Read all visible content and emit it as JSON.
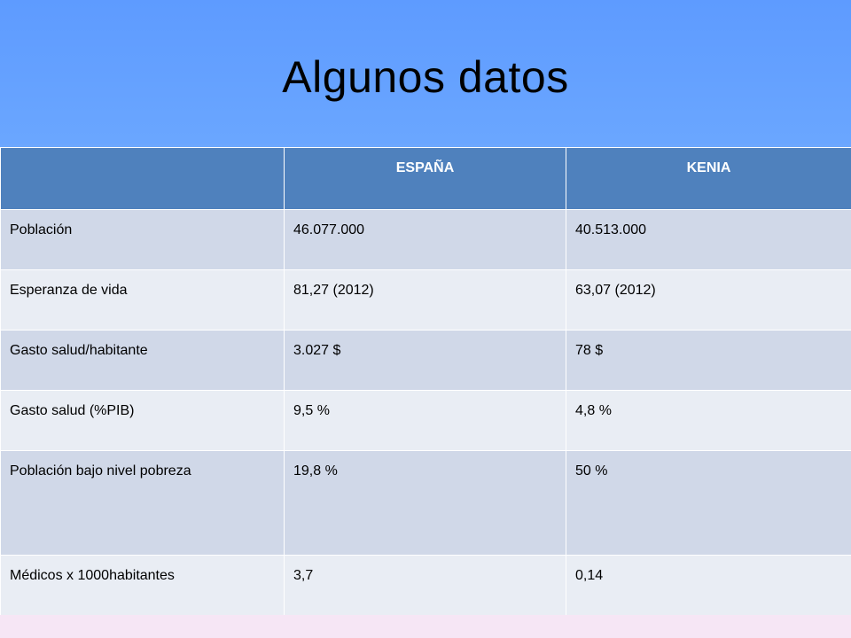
{
  "slide": {
    "title": "Algunos datos"
  },
  "table": {
    "headers": [
      "",
      "ESPAÑA",
      "KENIA"
    ],
    "rows": [
      [
        "Población",
        "46.077.000",
        "40.513.000"
      ],
      [
        "Esperanza de vida",
        "81,27  (2012)",
        "63,07  (2012)"
      ],
      [
        "Gasto salud/habitante",
        "3.027  $",
        "78 $"
      ],
      [
        "Gasto salud  (%PIB)",
        "9,5 %",
        "4,8 %"
      ],
      [
        "Población bajo nivel pobreza",
        "19,8 %",
        "50 %"
      ],
      [
        "Médicos  x 1000habitantes",
        "3,7",
        "0,14"
      ]
    ]
  },
  "colors": {
    "title_background": "#6aa6ff",
    "header_background": "#4f81bd",
    "row_dark": "#d0d8e8",
    "row_light": "#e9edf4",
    "bottom_background": "#f6e6f5"
  }
}
